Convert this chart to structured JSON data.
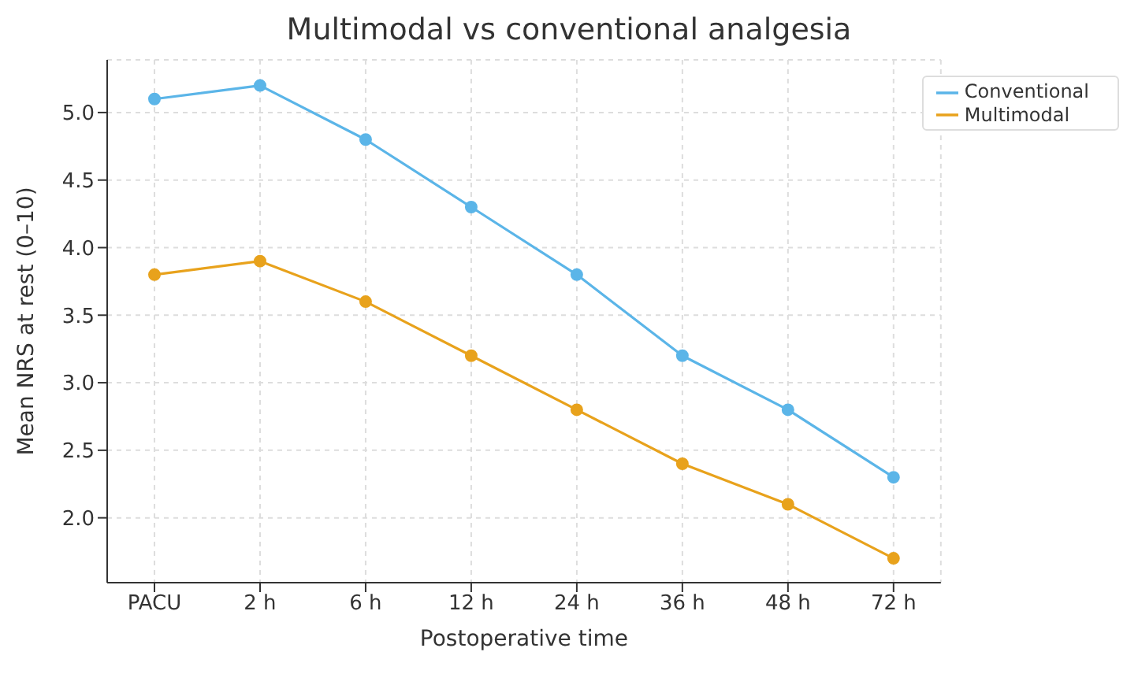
{
  "chart_data": {
    "type": "line",
    "title": "Multimodal vs conventional analgesia",
    "xlabel": "Postoperative time",
    "ylabel": "Mean NRS at rest (0–10)",
    "categories": [
      "PACU",
      "2 h",
      "6 h",
      "12 h",
      "24 h",
      "36 h",
      "48 h",
      "72 h"
    ],
    "series": [
      {
        "name": "Multimodal",
        "color": "#e8a21c",
        "values": [
          3.8,
          3.9,
          3.6,
          3.2,
          2.8,
          2.4,
          2.1,
          1.7
        ]
      },
      {
        "name": "Conventional",
        "color": "#5bb5e8",
        "values": [
          5.1,
          5.2,
          4.8,
          4.3,
          3.8,
          3.2,
          2.8,
          2.3
        ]
      }
    ],
    "ylim": [
      1.52,
      5.39
    ],
    "yticks": [
      {
        "value": 2,
        "label": "2.0"
      },
      {
        "value": 2.5,
        "label": "2.5"
      },
      {
        "value": 3,
        "label": "3.0"
      },
      {
        "value": 3.5,
        "label": "3.5"
      },
      {
        "value": 4,
        "label": "4.0"
      },
      {
        "value": 4.5,
        "label": "4.5"
      },
      {
        "value": 5,
        "label": "5.0"
      }
    ],
    "grid": true,
    "legend": "top right",
    "marker": "circle",
    "line_style": "solid"
  }
}
